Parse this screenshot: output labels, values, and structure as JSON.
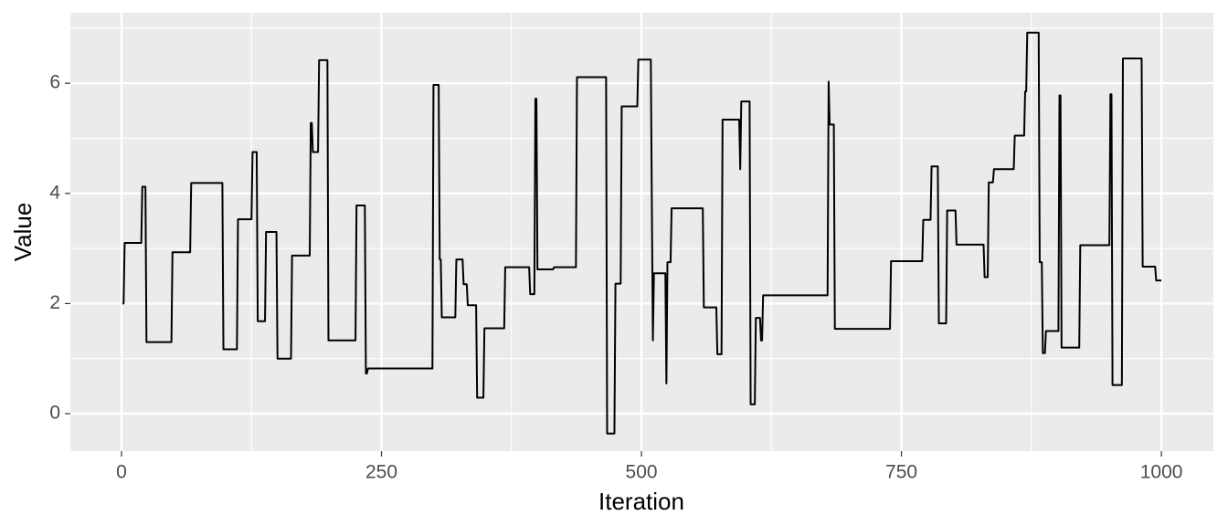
{
  "chart_data": {
    "type": "line",
    "xlabel": "Iteration",
    "ylabel": "Value",
    "xlim": [
      -49.2,
      1050
    ],
    "xticks": [
      0,
      250,
      500,
      750,
      1000
    ],
    "ylim": [
      -0.68,
      7.28
    ],
    "yticks": [
      0,
      2,
      4,
      6
    ],
    "grid": true,
    "color": "#000000",
    "background": "#ebebeb",
    "series": [
      {
        "name": "Value",
        "color": "#000000",
        "x": [
          1,
          2,
          3,
          19,
          20,
          23,
          24,
          48,
          49,
          66,
          67,
          97,
          98,
          111,
          112,
          125,
          126,
          130,
          131,
          138,
          139,
          149,
          150,
          163,
          164,
          181,
          182,
          183,
          184,
          189,
          190,
          198,
          199,
          225,
          226,
          234,
          235,
          236,
          237,
          299,
          300,
          305,
          306,
          307,
          308,
          321,
          322,
          328,
          329,
          332,
          333,
          341,
          342,
          348,
          349,
          368,
          369,
          392,
          393,
          397,
          398,
          399,
          400,
          415,
          416,
          437,
          438,
          466,
          467,
          474,
          475,
          480,
          481,
          496,
          497,
          509,
          510,
          511,
          512,
          523,
          524,
          525,
          528,
          529,
          559,
          560,
          572,
          573,
          577,
          578,
          594,
          595,
          596,
          604,
          605,
          609,
          610,
          614,
          615,
          616,
          617,
          679,
          680,
          681,
          685,
          686,
          739,
          740,
          770,
          771,
          778,
          779,
          785,
          786,
          793,
          794,
          802,
          803,
          829,
          830,
          833,
          834,
          838,
          839,
          858,
          859,
          868,
          869,
          870,
          871,
          882,
          883,
          885,
          886,
          888,
          889,
          901,
          902,
          903,
          904,
          921,
          922,
          950,
          951,
          952,
          953,
          962,
          963,
          981,
          982,
          994,
          995,
          1000
        ],
        "values": [
          2.0,
          2.0,
          3.1,
          3.1,
          4.12,
          4.12,
          1.3,
          1.3,
          2.93,
          2.93,
          4.19,
          4.19,
          1.17,
          1.17,
          3.53,
          3.53,
          4.75,
          4.75,
          1.68,
          1.68,
          3.3,
          3.3,
          1.0,
          1.0,
          2.87,
          2.87,
          5.28,
          5.28,
          4.75,
          4.75,
          6.42,
          6.42,
          1.33,
          1.33,
          3.78,
          3.78,
          0.73,
          0.73,
          0.82,
          0.82,
          5.97,
          5.97,
          2.8,
          2.8,
          1.75,
          1.75,
          2.8,
          2.8,
          2.35,
          2.35,
          1.97,
          1.97,
          0.29,
          0.29,
          1.55,
          1.55,
          2.66,
          2.66,
          2.17,
          2.17,
          5.72,
          5.72,
          2.62,
          2.62,
          2.66,
          2.66,
          6.11,
          6.11,
          -0.36,
          -0.36,
          2.36,
          2.36,
          5.58,
          5.58,
          6.43,
          6.43,
          3.78,
          1.33,
          2.55,
          2.55,
          0.55,
          2.75,
          2.75,
          3.73,
          3.73,
          1.93,
          1.93,
          1.08,
          1.08,
          5.34,
          5.34,
          4.44,
          5.67,
          5.67,
          0.17,
          0.17,
          1.74,
          1.74,
          1.33,
          1.33,
          2.15,
          2.15,
          6.03,
          5.25,
          5.25,
          1.54,
          1.54,
          2.77,
          2.77,
          3.52,
          3.52,
          4.49,
          4.49,
          1.64,
          1.64,
          3.69,
          3.69,
          3.07,
          3.07,
          2.48,
          2.48,
          4.2,
          4.2,
          4.44,
          4.44,
          5.05,
          5.05,
          5.85,
          5.85,
          6.92,
          6.92,
          2.75,
          2.75,
          1.1,
          1.1,
          1.5,
          1.5,
          5.78,
          5.78,
          1.2,
          1.2,
          3.06,
          3.06,
          5.8,
          5.8,
          0.52,
          0.52,
          6.45,
          6.45,
          2.67,
          2.67,
          2.42,
          2.42
        ]
      }
    ]
  }
}
